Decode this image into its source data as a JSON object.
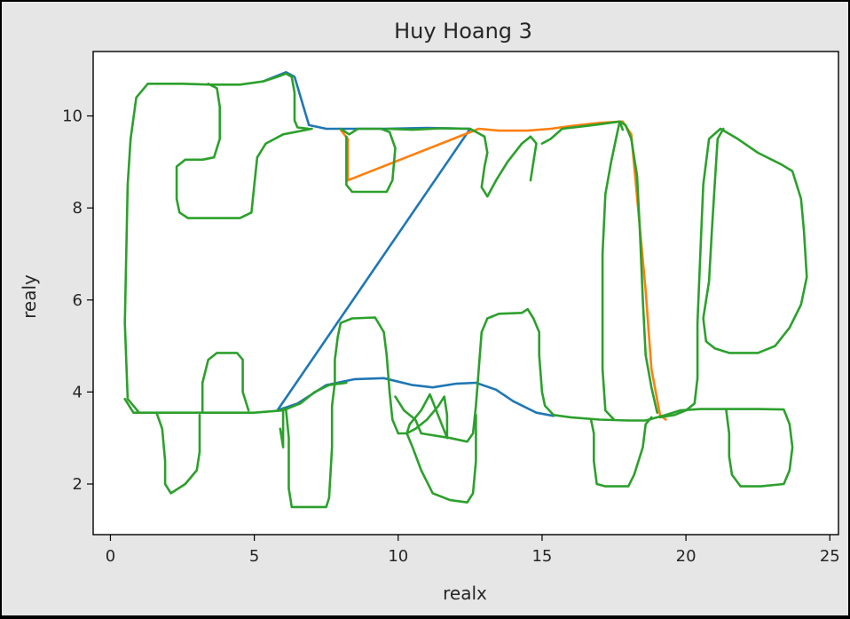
{
  "chart_data": {
    "type": "line",
    "title": "Huy Hoang 3",
    "xlabel": "realx",
    "ylabel": "realy",
    "xlim": [
      -0.6,
      25.3
    ],
    "ylim": [
      0.9,
      11.4
    ],
    "xticks": [
      0,
      5,
      10,
      15,
      20,
      25
    ],
    "yticks": [
      2,
      4,
      6,
      8,
      10
    ],
    "grid": false,
    "legend": "none",
    "series": [
      {
        "color": "#1f77b4",
        "points": [
          [
            5.3,
            10.75
          ],
          [
            6.1,
            10.95
          ],
          [
            6.4,
            10.85
          ],
          [
            6.9,
            9.8
          ],
          [
            7.5,
            9.72
          ],
          [
            8.5,
            9.72
          ],
          [
            9.5,
            9.72
          ],
          [
            11,
            9.74
          ],
          [
            12.5,
            9.72
          ],
          [
            5.8,
            3.6
          ],
          [
            6.5,
            3.75
          ],
          [
            7.5,
            4.15
          ],
          [
            8.5,
            4.28
          ],
          [
            9.5,
            4.3
          ],
          [
            10.5,
            4.15
          ],
          [
            11.2,
            4.1
          ],
          [
            12,
            4.18
          ],
          [
            12.7,
            4.2
          ],
          [
            13.4,
            4.05
          ],
          [
            14,
            3.8
          ],
          [
            14.8,
            3.55
          ],
          [
            15.4,
            3.48
          ]
        ]
      },
      {
        "color": "#ff7f0e",
        "points": [
          [
            8.0,
            9.7
          ],
          [
            8.25,
            9.5
          ],
          [
            8.25,
            8.6
          ],
          [
            12.8,
            9.72
          ],
          [
            13.5,
            9.68
          ],
          [
            14.5,
            9.68
          ],
          [
            15.3,
            9.72
          ],
          [
            16,
            9.78
          ],
          [
            17.0,
            9.85
          ],
          [
            17.8,
            9.88
          ],
          [
            18.1,
            9.6
          ],
          [
            18.6,
            6.2
          ],
          [
            18.8,
            4.5
          ],
          [
            19.1,
            3.5
          ],
          [
            19.3,
            3.4
          ]
        ]
      },
      {
        "color": "#2ca02c",
        "points": [
          [
            1.0,
            3.55
          ],
          [
            0.6,
            3.85
          ],
          [
            0.5,
            5.5
          ],
          [
            0.6,
            8.5
          ],
          [
            0.7,
            9.5
          ],
          [
            0.9,
            10.4
          ],
          [
            1.3,
            10.7
          ],
          [
            2.5,
            10.7
          ],
          [
            3.5,
            10.68
          ],
          [
            4.5,
            10.68
          ],
          [
            5.3,
            10.75
          ],
          [
            5.8,
            10.85
          ],
          [
            6.1,
            10.92
          ],
          [
            6.3,
            10.85
          ],
          [
            6.4,
            10.5
          ],
          [
            6.4,
            9.9
          ],
          [
            6.5,
            9.75
          ],
          [
            6.9,
            9.72
          ]
        ]
      },
      {
        "color": "#2ca02c",
        "points": [
          [
            1.6,
            3.55
          ],
          [
            1.8,
            3.2
          ],
          [
            1.9,
            2.5
          ],
          [
            1.9,
            2.0
          ],
          [
            2.1,
            1.8
          ],
          [
            2.6,
            2.0
          ],
          [
            3.0,
            2.3
          ],
          [
            3.1,
            2.7
          ],
          [
            3.1,
            3.5
          ]
        ]
      },
      {
        "color": "#2ca02c",
        "points": [
          [
            3.4,
            10.7
          ],
          [
            3.7,
            10.6
          ],
          [
            3.8,
            10.2
          ],
          [
            3.8,
            9.5
          ],
          [
            3.6,
            9.1
          ],
          [
            3.2,
            9.05
          ],
          [
            2.6,
            9.05
          ],
          [
            2.3,
            8.9
          ],
          [
            2.3,
            8.2
          ],
          [
            2.4,
            7.9
          ],
          [
            2.7,
            7.78
          ],
          [
            3.5,
            7.78
          ],
          [
            4.5,
            7.78
          ],
          [
            4.9,
            7.9
          ],
          [
            5.0,
            8.5
          ],
          [
            5.1,
            9.1
          ],
          [
            5.4,
            9.4
          ],
          [
            6.0,
            9.6
          ],
          [
            7.0,
            9.72
          ]
        ]
      },
      {
        "color": "#2ca02c",
        "points": [
          [
            0.5,
            3.85
          ],
          [
            0.8,
            3.55
          ],
          [
            2,
            3.55
          ],
          [
            3,
            3.55
          ],
          [
            4,
            3.55
          ],
          [
            5,
            3.55
          ],
          [
            6,
            3.6
          ],
          [
            6.6,
            3.75
          ],
          [
            7.1,
            4.0
          ],
          [
            7.6,
            4.15
          ],
          [
            8.2,
            4.2
          ]
        ]
      },
      {
        "color": "#2ca02c",
        "points": [
          [
            3.2,
            3.55
          ],
          [
            3.2,
            4.2
          ],
          [
            3.4,
            4.7
          ],
          [
            3.7,
            4.85
          ],
          [
            4.4,
            4.85
          ],
          [
            4.6,
            4.7
          ],
          [
            4.6,
            4.0
          ],
          [
            4.8,
            3.6
          ]
        ]
      },
      {
        "color": "#2ca02c",
        "points": [
          [
            6.0,
            3.65
          ],
          [
            6.0,
            3.1
          ],
          [
            6.0,
            2.8
          ],
          [
            5.9,
            3.2
          ]
        ]
      },
      {
        "color": "#2ca02c",
        "points": [
          [
            6.1,
            3.62
          ],
          [
            6.2,
            3.0
          ],
          [
            6.2,
            1.9
          ],
          [
            6.3,
            1.5
          ],
          [
            7.5,
            1.5
          ],
          [
            7.6,
            1.7
          ],
          [
            7.7,
            2.8
          ],
          [
            7.7,
            3.7
          ],
          [
            7.8,
            4.2
          ],
          [
            7.8,
            4.7
          ],
          [
            7.9,
            5.2
          ],
          [
            8.0,
            5.5
          ],
          [
            8.4,
            5.6
          ],
          [
            9.2,
            5.62
          ],
          [
            9.5,
            5.3
          ],
          [
            9.6,
            4.8
          ],
          [
            9.7,
            4.0
          ],
          [
            9.8,
            3.4
          ],
          [
            10.0,
            3.1
          ]
        ]
      },
      {
        "color": "#2ca02c",
        "points": [
          [
            9.9,
            3.9
          ],
          [
            10.2,
            3.6
          ],
          [
            10.6,
            3.4
          ],
          [
            10.8,
            3.1
          ],
          [
            11.8,
            3.0
          ],
          [
            12.4,
            2.92
          ],
          [
            12.6,
            3.1
          ],
          [
            12.7,
            3.7
          ],
          [
            12.8,
            4.5
          ],
          [
            12.9,
            5.3
          ],
          [
            13.1,
            5.6
          ],
          [
            13.5,
            5.7
          ],
          [
            14.3,
            5.72
          ],
          [
            14.5,
            5.8
          ],
          [
            14.7,
            5.6
          ],
          [
            14.9,
            5.3
          ],
          [
            14.9,
            4.8
          ],
          [
            15.0,
            4.0
          ],
          [
            15.1,
            3.7
          ],
          [
            15.4,
            3.5
          ],
          [
            16,
            3.45
          ],
          [
            17,
            3.4
          ],
          [
            18,
            3.38
          ],
          [
            18.6,
            3.38
          ],
          [
            19.0,
            3.45
          ],
          [
            19.3,
            3.5
          ]
        ]
      },
      {
        "color": "#2ca02c",
        "points": [
          [
            10.0,
            3.1
          ],
          [
            10.3,
            3.1
          ],
          [
            10.6,
            3.2
          ],
          [
            11.0,
            3.4
          ],
          [
            11.4,
            3.7
          ],
          [
            11.6,
            3.9
          ],
          [
            11.7,
            3.5
          ],
          [
            11.7,
            3.0
          ],
          [
            11.1,
            3.95
          ],
          [
            10.8,
            3.6
          ],
          [
            10.4,
            3.3
          ],
          [
            10.3,
            3.1
          ],
          [
            10.5,
            2.8
          ],
          [
            10.8,
            2.3
          ],
          [
            11.2,
            1.8
          ],
          [
            11.8,
            1.65
          ],
          [
            12.4,
            1.6
          ],
          [
            12.6,
            1.8
          ],
          [
            12.7,
            2.5
          ],
          [
            12.7,
            3.5
          ]
        ]
      },
      {
        "color": "#2ca02c",
        "points": [
          [
            8.2,
            9.55
          ],
          [
            8.2,
            9.0
          ],
          [
            8.2,
            8.5
          ],
          [
            8.4,
            8.35
          ],
          [
            9.0,
            8.35
          ],
          [
            9.6,
            8.35
          ],
          [
            9.8,
            8.6
          ],
          [
            9.9,
            9.3
          ],
          [
            9.7,
            9.65
          ],
          [
            9.4,
            9.72
          ],
          [
            8.6,
            9.72
          ],
          [
            8.3,
            9.6
          ],
          [
            8.0,
            9.72
          ]
        ]
      },
      {
        "color": "#2ca02c",
        "points": [
          [
            9.6,
            9.72
          ],
          [
            10.5,
            9.7
          ],
          [
            11.5,
            9.73
          ],
          [
            12.5,
            9.72
          ],
          [
            13.0,
            9.55
          ],
          [
            13.1,
            9.2
          ],
          [
            13.0,
            8.9
          ],
          [
            12.9,
            8.45
          ],
          [
            13.1,
            8.25
          ],
          [
            13.4,
            8.6
          ],
          [
            13.8,
            9.0
          ],
          [
            14.3,
            9.4
          ],
          [
            14.6,
            9.55
          ],
          [
            14.8,
            9.4
          ],
          [
            14.7,
            9.0
          ],
          [
            14.6,
            8.6
          ]
        ]
      },
      {
        "color": "#2ca02c",
        "points": [
          [
            15.0,
            9.4
          ],
          [
            15.3,
            9.5
          ],
          [
            15.7,
            9.72
          ],
          [
            16.5,
            9.78
          ],
          [
            17.0,
            9.82
          ],
          [
            17.7,
            9.88
          ],
          [
            17.9,
            9.8
          ],
          [
            18.1,
            9.5
          ],
          [
            18.3,
            8.7
          ],
          [
            18.4,
            7.5
          ],
          [
            18.5,
            6.0
          ],
          [
            18.6,
            4.8
          ],
          [
            18.8,
            4.1
          ],
          [
            19.0,
            3.55
          ]
        ]
      },
      {
        "color": "#2ca02c",
        "points": [
          [
            16.7,
            3.4
          ],
          [
            16.8,
            3.1
          ],
          [
            16.8,
            2.5
          ],
          [
            16.9,
            2.0
          ],
          [
            17.2,
            1.95
          ],
          [
            18,
            1.95
          ],
          [
            18.2,
            2.2
          ],
          [
            18.5,
            2.8
          ],
          [
            18.6,
            3.3
          ],
          [
            18.8,
            3.45
          ]
        ]
      },
      {
        "color": "#2ca02c",
        "points": [
          [
            17.5,
            3.4
          ],
          [
            17.2,
            3.6
          ],
          [
            17.1,
            4.5
          ],
          [
            17.1,
            5.7
          ],
          [
            17.1,
            7.0
          ],
          [
            17.2,
            8.3
          ],
          [
            17.4,
            9.0
          ],
          [
            17.6,
            9.6
          ],
          [
            17.7,
            9.88
          ],
          [
            17.8,
            9.7
          ]
        ]
      },
      {
        "color": "#2ca02c",
        "points": [
          [
            19.1,
            3.45
          ],
          [
            19.6,
            3.5
          ],
          [
            20.0,
            3.6
          ],
          [
            20.3,
            3.75
          ],
          [
            20.4,
            4.3
          ],
          [
            20.4,
            5.5
          ],
          [
            20.5,
            7.0
          ],
          [
            20.6,
            8.5
          ],
          [
            20.8,
            9.5
          ],
          [
            21.2,
            9.72
          ],
          [
            21.8,
            9.5
          ],
          [
            22.5,
            9.2
          ],
          [
            23.3,
            8.95
          ],
          [
            23.7,
            8.8
          ],
          [
            24.0,
            8.2
          ],
          [
            24.1,
            7.5
          ],
          [
            24.2,
            6.5
          ],
          [
            24.0,
            5.9
          ],
          [
            23.6,
            5.4
          ],
          [
            23.1,
            5.0
          ],
          [
            22.5,
            4.85
          ],
          [
            21.5,
            4.85
          ],
          [
            21.0,
            4.95
          ],
          [
            20.7,
            5.1
          ],
          [
            20.6,
            5.6
          ],
          [
            20.8,
            6.4
          ],
          [
            20.9,
            7.5
          ],
          [
            21.0,
            8.5
          ],
          [
            21.1,
            9.5
          ],
          [
            21.3,
            9.72
          ]
        ]
      },
      {
        "color": "#2ca02c",
        "points": [
          [
            19.3,
            3.5
          ],
          [
            19.8,
            3.6
          ],
          [
            20.5,
            3.63
          ],
          [
            21.5,
            3.63
          ],
          [
            22.5,
            3.63
          ],
          [
            23.4,
            3.62
          ],
          [
            23.6,
            3.3
          ],
          [
            23.7,
            2.8
          ],
          [
            23.6,
            2.3
          ],
          [
            23.4,
            2.0
          ],
          [
            22.6,
            1.95
          ],
          [
            21.9,
            1.95
          ],
          [
            21.6,
            2.2
          ],
          [
            21.5,
            2.6
          ],
          [
            21.5,
            3.1
          ],
          [
            21.4,
            3.6
          ]
        ]
      }
    ]
  }
}
